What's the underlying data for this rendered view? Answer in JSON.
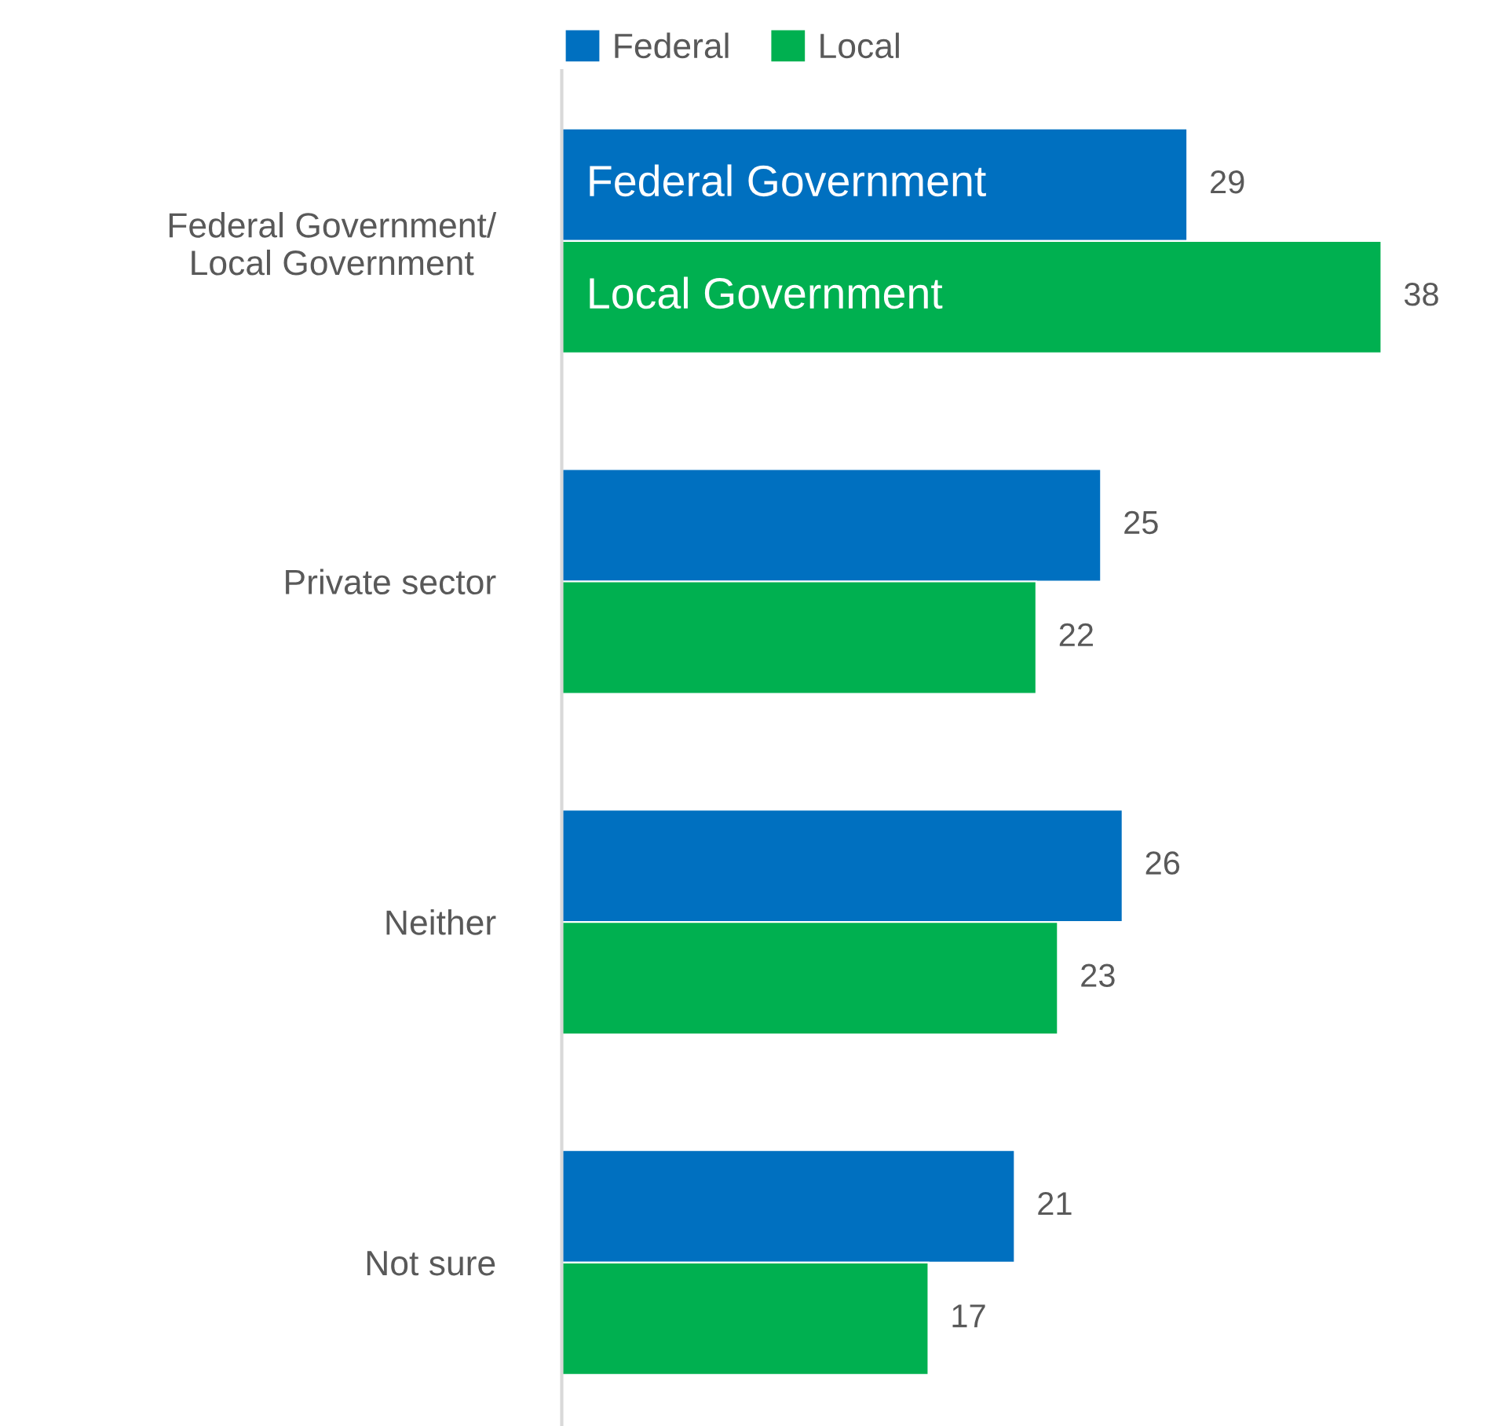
{
  "chart_data": {
    "type": "bar",
    "orientation": "horizontal",
    "categories": [
      "Federal Government/\nLocal Government",
      "Private sector",
      "Neither",
      "Not sure"
    ],
    "series": [
      {
        "name": "Federal",
        "color": "#0070c0",
        "values": [
          29,
          25,
          26,
          21
        ]
      },
      {
        "name": "Local",
        "color": "#00b050",
        "values": [
          38,
          22,
          23,
          17
        ]
      }
    ],
    "annotations": [
      "Federal Government",
      "Local Government"
    ],
    "data_labels": true,
    "legend": "top",
    "grid": false,
    "tick_labels": "y"
  }
}
